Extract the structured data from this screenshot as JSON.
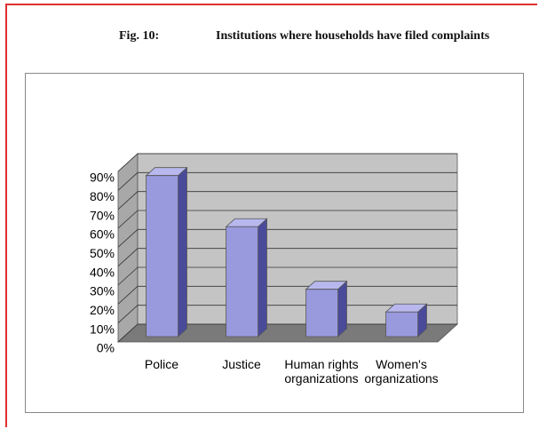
{
  "chart_data": {
    "type": "bar3d",
    "figure": "Fig. 10:",
    "title": "Institutions where households have filed complaints",
    "categories": [
      "Police",
      "Justice",
      "Human rights organizations",
      "Women's organizations"
    ],
    "values": [
      85,
      58,
      25,
      13
    ],
    "color": "#9999dd",
    "ylim": [
      0,
      90
    ],
    "yticks": [
      {
        "value": 0,
        "label": "0%"
      },
      {
        "value": 10,
        "label": "10%"
      },
      {
        "value": 20,
        "label": "20%"
      },
      {
        "value": 30,
        "label": "30%"
      },
      {
        "value": 40,
        "label": "40%"
      },
      {
        "value": 50,
        "label": "50%"
      },
      {
        "value": 60,
        "label": "60%"
      },
      {
        "value": 70,
        "label": "70%"
      },
      {
        "value": 80,
        "label": "80%"
      },
      {
        "value": 90,
        "label": "90%"
      }
    ],
    "grid": true
  }
}
